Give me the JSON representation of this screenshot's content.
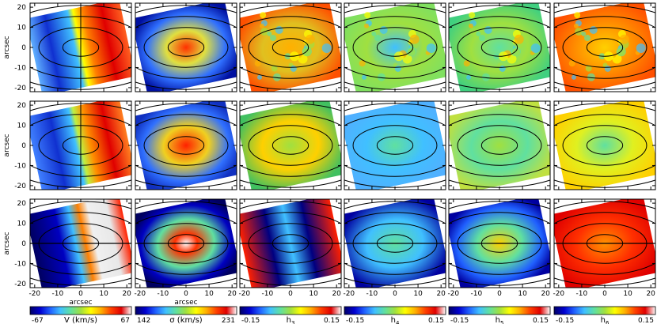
{
  "figure": {
    "y_axis_label": "arcsec",
    "x_axis_label": "arcsec",
    "y_ticks": [
      "20",
      "10",
      "0",
      "-10",
      "-20"
    ],
    "x_ticks": [
      "-20",
      "-10",
      "0",
      "10",
      "20"
    ]
  },
  "rows": [
    "row-1",
    "row-2",
    "row-3"
  ],
  "columns": [
    {
      "key": "v",
      "symbol": "V (km/s)",
      "sub": "",
      "min": "-67",
      "max": "67"
    },
    {
      "key": "sigma",
      "symbol": "σ (km/s)",
      "sub": "",
      "min": "142",
      "max": "231"
    },
    {
      "key": "h3",
      "symbol": "h",
      "sub": "3",
      "min": "-0.15",
      "max": "0.15"
    },
    {
      "key": "h4",
      "symbol": "h",
      "sub": "4",
      "min": "-0.15",
      "max": "0.15"
    },
    {
      "key": "h5",
      "symbol": "h",
      "sub": "5",
      "min": "-0.15",
      "max": "0.15"
    },
    {
      "key": "h6",
      "symbol": "h",
      "sub": "6",
      "min": "-0.15",
      "max": "0.15"
    }
  ],
  "colormap": [
    "#000066",
    "#0000d0",
    "#2060ff",
    "#40c0ff",
    "#60e0a0",
    "#a0e040",
    "#ffff00",
    "#ffb000",
    "#ff4000",
    "#e00000",
    "#ffffff"
  ]
}
